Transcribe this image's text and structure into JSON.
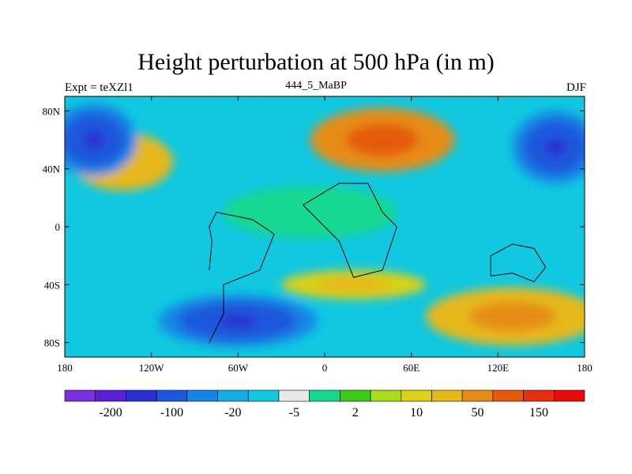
{
  "chart_data": {
    "type": "heatmap",
    "title": "Height perturbation at 500 hPa (in m)",
    "left_subtitle": "Expt = teXZl1",
    "center_subtitle": "444_5_MaBP",
    "right_subtitle": "DJF",
    "x_tick_labels": [
      "180",
      "120W",
      "60W",
      "0",
      "60E",
      "120E",
      "180"
    ],
    "x_tick_values": [
      -180,
      -120,
      -60,
      0,
      60,
      120,
      180
    ],
    "y_tick_labels": [
      "80N",
      "40N",
      "0",
      "40S",
      "80S"
    ],
    "y_tick_values": [
      80,
      40,
      0,
      -40,
      -80
    ],
    "xlim": [
      -180,
      180
    ],
    "ylim": [
      -90,
      90
    ],
    "colorbar_colors": [
      "#7b2fe0",
      "#5a1fd6",
      "#2a2fd0",
      "#1c58dc",
      "#1486e6",
      "#14aee6",
      "#10c8e0",
      "#e8e8e8",
      "#18d890",
      "#3ccc18",
      "#a8dc1c",
      "#dcd018",
      "#e6b81a",
      "#e68c14",
      "#e65a0e",
      "#e62e10",
      "#e60a0a"
    ],
    "colorbar_labels": [
      "-200",
      "-100",
      "-20",
      "-5",
      "2",
      "10",
      "50",
      "150"
    ],
    "colorbar_label_boundaries": [
      1,
      3,
      5,
      7,
      9,
      11,
      13,
      15
    ],
    "field": {
      "background_level": -5,
      "features": [
        {
          "lon": 40,
          "lat": 60,
          "rx": 50,
          "ry": 22,
          "value": 150
        },
        {
          "lon": -140,
          "lat": 45,
          "rx": 35,
          "ry": 20,
          "value": 50
        },
        {
          "lon": 130,
          "lat": -62,
          "rx": 60,
          "ry": 20,
          "value": 80
        },
        {
          "lon": -160,
          "lat": 60,
          "rx": 30,
          "ry": 25,
          "value": -100
        },
        {
          "lon": 160,
          "lat": 55,
          "rx": 30,
          "ry": 25,
          "value": -100
        },
        {
          "lon": -60,
          "lat": -65,
          "rx": 55,
          "ry": 18,
          "value": -100
        },
        {
          "lon": -10,
          "lat": 10,
          "rx": 60,
          "ry": 18,
          "value": 2
        },
        {
          "lon": 20,
          "lat": -40,
          "rx": 50,
          "ry": 10,
          "value": 30
        }
      ]
    }
  }
}
